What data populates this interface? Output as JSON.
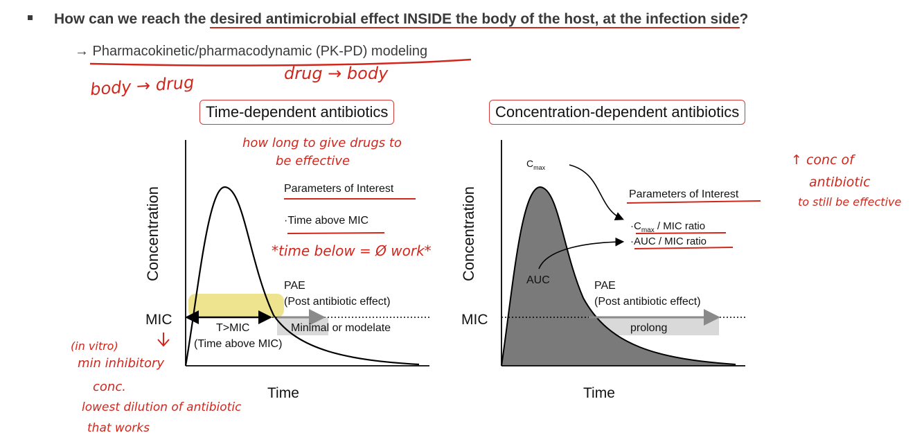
{
  "slide": {
    "question_prefix": "How can we reach the ",
    "question_highlight": "desired antimicrobial effect INSIDE the body of the host, at the infection side",
    "question_suffix": "?",
    "pk_line": "→ Pharmacokinetic/pharmacodynamic (PK-PD) modeling"
  },
  "left_chart": {
    "title": "Time-dependent antibiotics",
    "ylabel": "Concentration",
    "xlabel": "Time",
    "mic_label": "MIC",
    "params_title": "Parameters of Interest",
    "param_1": "·Time above MIC",
    "pae_1": "PAE",
    "pae_2": "(Post antibiotic effect)",
    "pae_3": "Minimal or modelate",
    "tmic_1": "T>MIC",
    "tmic_2": "(Time above MIC)"
  },
  "right_chart": {
    "title": "Concentration-dependent antibiotics",
    "ylabel": "Concentration",
    "xlabel": "Time",
    "mic_label": "MIC",
    "cmax_c": "C",
    "cmax_sub": "max",
    "params_title": "Parameters of Interest",
    "param_1_c": "·C",
    "param_1_sub": "max",
    "param_1_rest": " / MIC ratio",
    "param_2": "·AUC   / MIC ratio",
    "auc": "AUC",
    "pae_1": "PAE",
    "pae_2": "(Post antibiotic effect)",
    "pae_3": "prolong"
  },
  "notes": {
    "body_drug": "body → drug",
    "drug_body": "drug → body",
    "how_long_1": "how long to give drugs to",
    "how_long_2": "be effective",
    "time_below": "*time below = Ø work*",
    "in_vitro": "(in vitro)",
    "min_inhib_1": "min inhibitory",
    "min_inhib_2": "conc.",
    "lowest_1": "lowest dilution of antibiotic",
    "lowest_2": "that works",
    "conc_1": "↑ conc of",
    "conc_2": "antibiotic",
    "conc_3": "to still be effective"
  },
  "colors": {
    "ink": "#d1261c",
    "fill": "#7a7a7a",
    "highlight": "#e8d96a"
  }
}
